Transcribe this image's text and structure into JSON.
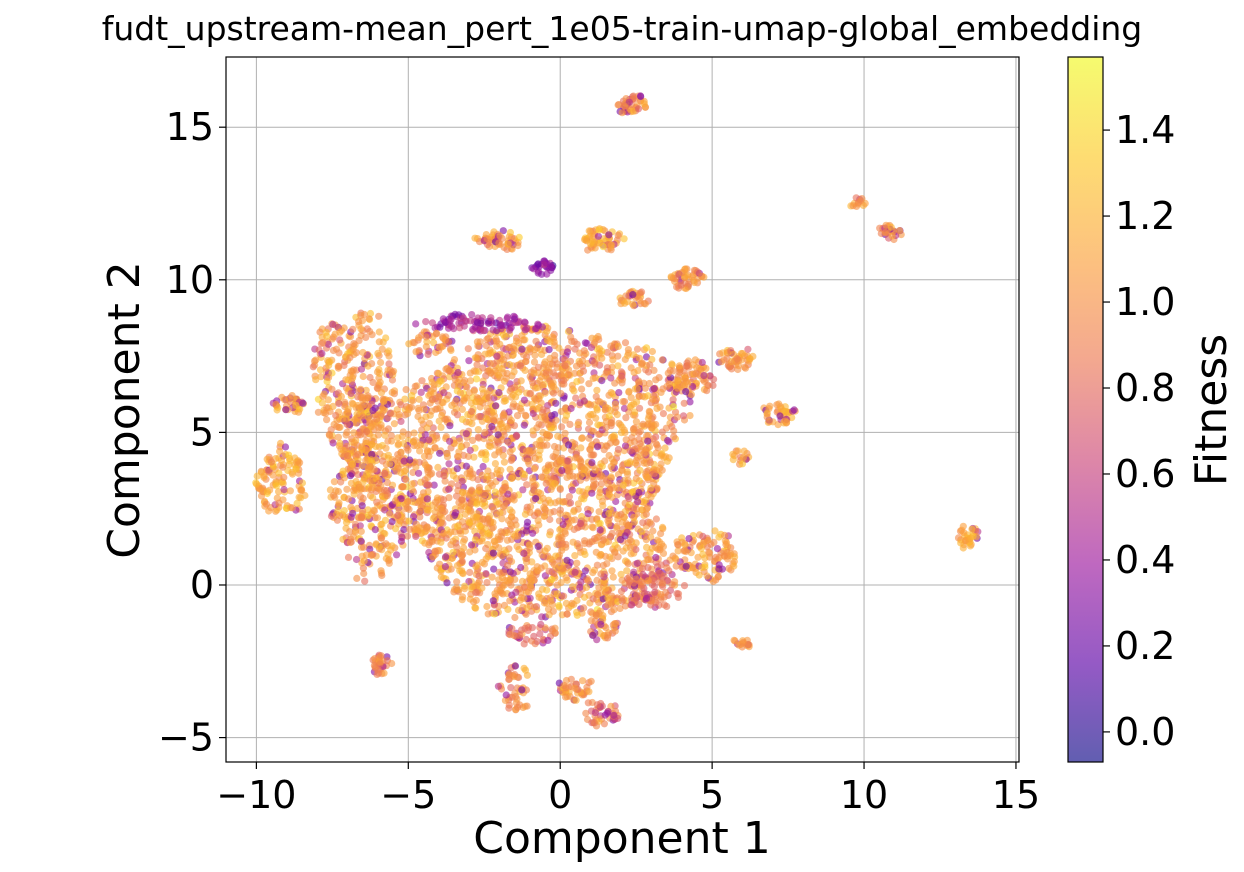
{
  "chart_data": {
    "type": "scatter",
    "title": "fudt_upstream-mean_pert_1e05-train-umap-global_embedding",
    "xlabel": "Component 1",
    "ylabel": "Component 2",
    "xlim": [
      -11.0,
      15.1
    ],
    "ylim": [
      -5.8,
      17.3
    ],
    "xticks": [
      -10,
      -5,
      0,
      5,
      10,
      15
    ],
    "xtick_labels": [
      "−10",
      "−5",
      "0",
      "5",
      "10",
      "15"
    ],
    "yticks": [
      -5,
      0,
      5,
      10,
      15
    ],
    "ytick_labels": [
      "−5",
      "0",
      "5",
      "10",
      "15"
    ],
    "grid": true,
    "colormap": "plasma",
    "marker_alpha": 0.6,
    "colorbar": {
      "label": "Fitness",
      "range": [
        -0.07,
        1.57
      ],
      "ticks": [
        0.0,
        0.2,
        0.4,
        0.6,
        0.8,
        1.0,
        1.2,
        1.4
      ],
      "tick_labels": [
        "0.0",
        "0.2",
        "0.4",
        "0.6",
        "0.8",
        "1.0",
        "1.2",
        "1.4"
      ]
    },
    "clusters": [
      {
        "cx": -1.0,
        "cy": 3.8,
        "rx": 5.3,
        "ry": 4.8,
        "n": 2600,
        "fitness": 1.05
      },
      {
        "cx": -6.8,
        "cy": 6.5,
        "rx": 1.3,
        "ry": 2.6,
        "n": 320,
        "fitness": 1.05
      },
      {
        "cx": -6.2,
        "cy": 2.5,
        "rx": 1.4,
        "ry": 2.2,
        "n": 260,
        "fitness": 1.05
      },
      {
        "cx": -9.2,
        "cy": 3.4,
        "rx": 0.8,
        "ry": 1.1,
        "n": 110,
        "fitness": 1.1
      },
      {
        "cx": -9.0,
        "cy": 5.9,
        "rx": 0.6,
        "ry": 0.3,
        "n": 35,
        "fitness": 1.1
      },
      {
        "cx": -2.5,
        "cy": 8.6,
        "rx": 2.0,
        "ry": 0.3,
        "n": 90,
        "fitness": 0.45
      },
      {
        "cx": -2.0,
        "cy": 11.3,
        "rx": 0.8,
        "ry": 0.3,
        "n": 50,
        "fitness": 1.05
      },
      {
        "cx": 1.4,
        "cy": 11.3,
        "rx": 0.7,
        "ry": 0.4,
        "n": 55,
        "fitness": 1.1
      },
      {
        "cx": 2.3,
        "cy": 15.8,
        "rx": 0.5,
        "ry": 0.4,
        "n": 45,
        "fitness": 1.0
      },
      {
        "cx": -0.6,
        "cy": 10.4,
        "rx": 0.4,
        "ry": 0.25,
        "n": 25,
        "fitness": 0.35
      },
      {
        "cx": 4.2,
        "cy": 10.0,
        "rx": 0.6,
        "ry": 0.35,
        "n": 45,
        "fitness": 1.0
      },
      {
        "cx": 2.4,
        "cy": 9.4,
        "rx": 0.5,
        "ry": 0.3,
        "n": 30,
        "fitness": 1.05
      },
      {
        "cx": 5.8,
        "cy": 7.4,
        "rx": 0.6,
        "ry": 0.35,
        "n": 45,
        "fitness": 1.0
      },
      {
        "cx": 7.2,
        "cy": 5.6,
        "rx": 0.5,
        "ry": 0.35,
        "n": 40,
        "fitness": 1.1
      },
      {
        "cx": 4.3,
        "cy": 6.8,
        "rx": 0.8,
        "ry": 0.6,
        "n": 70,
        "fitness": 1.0
      },
      {
        "cx": 4.8,
        "cy": 1.0,
        "rx": 1.1,
        "ry": 0.8,
        "n": 110,
        "fitness": 1.05
      },
      {
        "cx": 3.0,
        "cy": 0.0,
        "rx": 1.0,
        "ry": 0.8,
        "n": 110,
        "fitness": 0.85
      },
      {
        "cx": 5.9,
        "cy": 4.2,
        "rx": 0.35,
        "ry": 0.25,
        "n": 15,
        "fitness": 1.0
      },
      {
        "cx": 6.0,
        "cy": -1.9,
        "rx": 0.3,
        "ry": 0.2,
        "n": 15,
        "fitness": 1.0
      },
      {
        "cx": 9.8,
        "cy": 12.5,
        "rx": 0.25,
        "ry": 0.2,
        "n": 12,
        "fitness": 1.0
      },
      {
        "cx": 10.9,
        "cy": 11.6,
        "rx": 0.4,
        "ry": 0.3,
        "n": 25,
        "fitness": 1.0
      },
      {
        "cx": 13.4,
        "cy": 1.6,
        "rx": 0.4,
        "ry": 0.4,
        "n": 30,
        "fitness": 1.1
      },
      {
        "cx": -5.9,
        "cy": -2.6,
        "rx": 0.35,
        "ry": 0.35,
        "n": 30,
        "fitness": 0.9
      },
      {
        "cx": -1.5,
        "cy": -3.4,
        "rx": 0.5,
        "ry": 0.8,
        "n": 45,
        "fitness": 1.0
      },
      {
        "cx": 0.5,
        "cy": -3.4,
        "rx": 0.6,
        "ry": 0.35,
        "n": 40,
        "fitness": 1.0
      },
      {
        "cx": 1.3,
        "cy": -4.2,
        "rx": 0.6,
        "ry": 0.4,
        "n": 40,
        "fitness": 0.9
      },
      {
        "cx": 1.4,
        "cy": -1.3,
        "rx": 0.5,
        "ry": 0.5,
        "n": 35,
        "fitness": 1.0
      },
      {
        "cx": -0.9,
        "cy": -1.6,
        "rx": 0.8,
        "ry": 0.4,
        "n": 40,
        "fitness": 0.8
      },
      {
        "cx": -4.3,
        "cy": 7.9,
        "rx": 0.8,
        "ry": 0.4,
        "n": 40,
        "fitness": 1.0
      }
    ]
  }
}
